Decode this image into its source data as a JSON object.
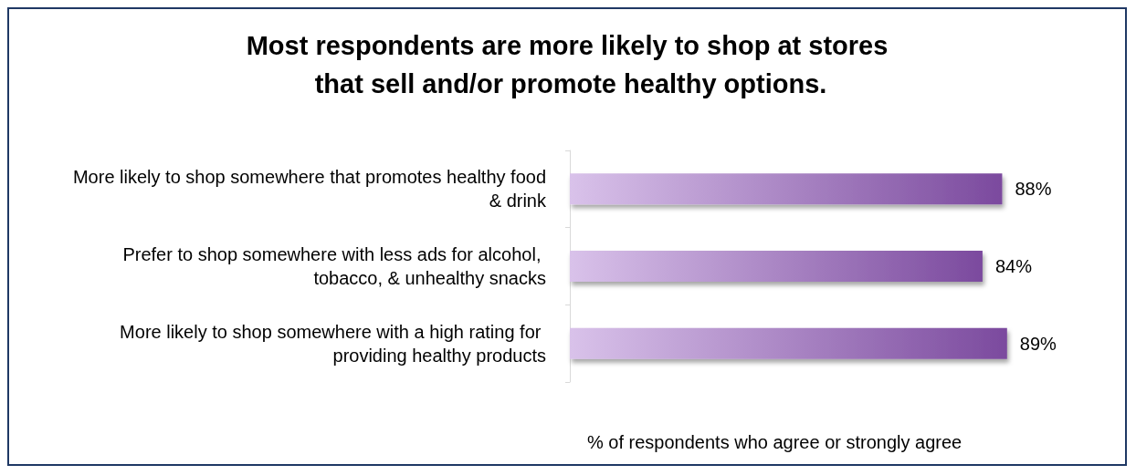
{
  "chart_data": {
    "type": "bar",
    "orientation": "horizontal",
    "title": "Most respondents are more likely to shop at stores that sell and/or promote healthy options.",
    "xlabel": "% of respondents who agree or strongly agree",
    "categories": [
      "More likely to shop somewhere that promotes healthy food & drink",
      "Prefer to shop somewhere with less ads for alcohol, tobacco, & unhealthy snacks",
      "More likely to shop somewhere with a high rating for providing healthy products"
    ],
    "values": [
      88,
      84,
      89
    ],
    "color": "#7b4a9e",
    "value_labels": [
      "88%",
      "84%",
      "89%"
    ]
  }
}
